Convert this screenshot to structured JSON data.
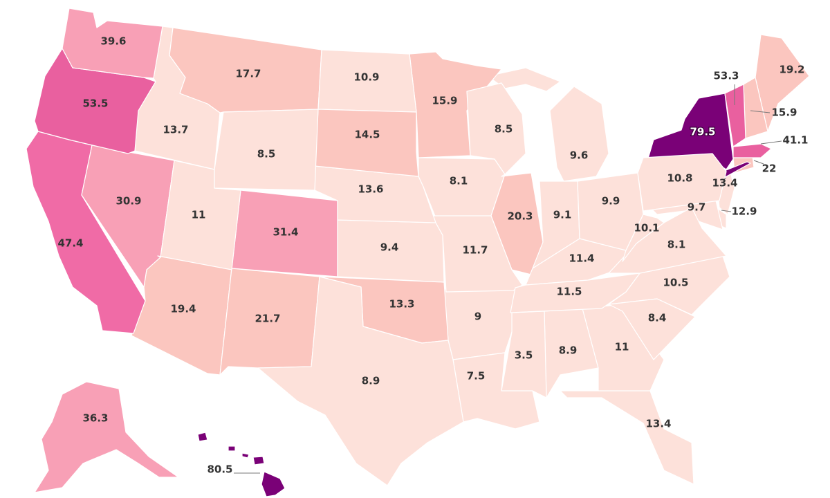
{
  "palette": {
    "c1": "#fde1da",
    "c2": "#fbc6bf",
    "c3": "#f8a0b6",
    "c4": "#f06ba6",
    "c5": "#e9609f",
    "c6": "#7a0177"
  },
  "states": [
    {
      "id": "AK",
      "value": "36.3",
      "color": "c3"
    },
    {
      "id": "AL",
      "value": "8.9",
      "color": "c1"
    },
    {
      "id": "AR",
      "value": "9",
      "color": "c1"
    },
    {
      "id": "AZ",
      "value": "19.4",
      "color": "c2"
    },
    {
      "id": "CA",
      "value": "47.4",
      "color": "c4"
    },
    {
      "id": "CO",
      "value": "31.4",
      "color": "c3"
    },
    {
      "id": "CT",
      "value": "22",
      "color": "c2"
    },
    {
      "id": "DE",
      "value": "12.9",
      "color": "c1"
    },
    {
      "id": "FL",
      "value": "13.4",
      "color": "c1"
    },
    {
      "id": "GA",
      "value": "11",
      "color": "c1"
    },
    {
      "id": "HI",
      "value": "80.5",
      "color": "c6"
    },
    {
      "id": "IA",
      "value": "8.1",
      "color": "c1"
    },
    {
      "id": "ID",
      "value": "13.7",
      "color": "c1"
    },
    {
      "id": "IL",
      "value": "20.3",
      "color": "c2"
    },
    {
      "id": "IN",
      "value": "9.1",
      "color": "c1"
    },
    {
      "id": "KS",
      "value": "9.4",
      "color": "c1"
    },
    {
      "id": "KY",
      "value": "11.4",
      "color": "c1"
    },
    {
      "id": "LA",
      "value": "7.5",
      "color": "c1"
    },
    {
      "id": "MA",
      "value": "41.1",
      "color": "c5"
    },
    {
      "id": "MD",
      "value": "9.7",
      "color": "c1"
    },
    {
      "id": "ME",
      "value": "19.2",
      "color": "c2"
    },
    {
      "id": "MI",
      "value": "9.6",
      "color": "c1"
    },
    {
      "id": "MN",
      "value": "15.9",
      "color": "c2"
    },
    {
      "id": "MO",
      "value": "11.7",
      "color": "c1"
    },
    {
      "id": "MS",
      "value": "3.5",
      "color": "c1"
    },
    {
      "id": "MT",
      "value": "17.7",
      "color": "c2"
    },
    {
      "id": "NC",
      "value": "10.5",
      "color": "c1"
    },
    {
      "id": "ND",
      "value": "10.9",
      "color": "c1"
    },
    {
      "id": "NE",
      "value": "13.6",
      "color": "c1"
    },
    {
      "id": "NH",
      "value": "15.9",
      "color": "c2"
    },
    {
      "id": "NJ",
      "value": "13.4",
      "color": "c1"
    },
    {
      "id": "NM",
      "value": "21.7",
      "color": "c2"
    },
    {
      "id": "NV",
      "value": "30.9",
      "color": "c3"
    },
    {
      "id": "NY",
      "value": "79.5",
      "color": "c6"
    },
    {
      "id": "OH",
      "value": "9.9",
      "color": "c1"
    },
    {
      "id": "OK",
      "value": "13.3",
      "color": "c2"
    },
    {
      "id": "OR",
      "value": "53.5",
      "color": "c5"
    },
    {
      "id": "PA",
      "value": "10.8",
      "color": "c1"
    },
    {
      "id": "SC",
      "value": "8.4",
      "color": "c1"
    },
    {
      "id": "SD",
      "value": "14.5",
      "color": "c2"
    },
    {
      "id": "TN",
      "value": "11.5",
      "color": "c1"
    },
    {
      "id": "TX",
      "value": "8.9",
      "color": "c1"
    },
    {
      "id": "UT",
      "value": "11",
      "color": "c1"
    },
    {
      "id": "VA",
      "value": "8.1",
      "color": "c1"
    },
    {
      "id": "VT",
      "value": "53.3",
      "color": "c5"
    },
    {
      "id": "WA",
      "value": "39.6",
      "color": "c3"
    },
    {
      "id": "WI",
      "value": "8.5",
      "color": "c1"
    },
    {
      "id": "WV",
      "value": "10.1",
      "color": "c1"
    },
    {
      "id": "WY",
      "value": "8.5",
      "color": "c1"
    }
  ]
}
